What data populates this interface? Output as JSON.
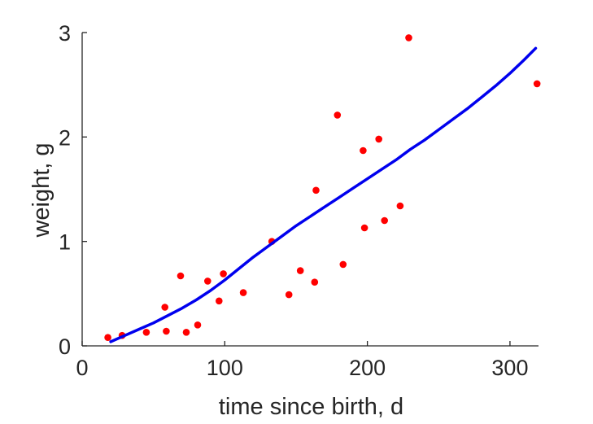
{
  "chart_data": {
    "type": "scatter",
    "xlabel": "time since birth, d",
    "ylabel": "weight, g",
    "xlim": [
      0,
      320
    ],
    "ylim": [
      0,
      3
    ],
    "x_ticks": [
      0,
      100,
      200,
      300
    ],
    "y_ticks": [
      0,
      1,
      2,
      3
    ],
    "x_tick_labels": [
      "0",
      "100",
      "200",
      "300"
    ],
    "y_tick_labels": [
      "0",
      "1",
      "2",
      "3"
    ],
    "grid": false,
    "axis_color": "#262626",
    "series": [
      {
        "kind": "scatter",
        "color": "#ff0000",
        "points": [
          [
            18,
            0.08
          ],
          [
            28,
            0.1
          ],
          [
            45,
            0.13
          ],
          [
            58,
            0.37
          ],
          [
            59,
            0.14
          ],
          [
            69,
            0.67
          ],
          [
            73,
            0.13
          ],
          [
            81,
            0.2
          ],
          [
            88,
            0.62
          ],
          [
            96,
            0.43
          ],
          [
            99,
            0.69
          ],
          [
            113,
            0.51
          ],
          [
            133,
            1.0
          ],
          [
            145,
            0.49
          ],
          [
            153,
            0.72
          ],
          [
            163,
            0.61
          ],
          [
            164,
            1.49
          ],
          [
            179,
            2.21
          ],
          [
            183,
            0.78
          ],
          [
            197,
            1.87
          ],
          [
            198,
            1.13
          ],
          [
            208,
            1.98
          ],
          [
            212,
            1.2
          ],
          [
            223,
            1.34
          ],
          [
            229,
            2.95
          ],
          [
            319,
            2.51
          ]
        ]
      },
      {
        "kind": "line",
        "color": "#0000ee",
        "points": [
          [
            20,
            0.04
          ],
          [
            30,
            0.1
          ],
          [
            40,
            0.16
          ],
          [
            50,
            0.22
          ],
          [
            60,
            0.29
          ],
          [
            70,
            0.36
          ],
          [
            80,
            0.44
          ],
          [
            90,
            0.53
          ],
          [
            100,
            0.63
          ],
          [
            110,
            0.74
          ],
          [
            120,
            0.85
          ],
          [
            130,
            0.95
          ],
          [
            140,
            1.05
          ],
          [
            150,
            1.15
          ],
          [
            160,
            1.24
          ],
          [
            170,
            1.33
          ],
          [
            180,
            1.42
          ],
          [
            190,
            1.51
          ],
          [
            200,
            1.6
          ],
          [
            210,
            1.69
          ],
          [
            220,
            1.78
          ],
          [
            230,
            1.88
          ],
          [
            240,
            1.97
          ],
          [
            250,
            2.07
          ],
          [
            260,
            2.17
          ],
          [
            270,
            2.27
          ],
          [
            280,
            2.38
          ],
          [
            290,
            2.49
          ],
          [
            300,
            2.61
          ],
          [
            310,
            2.74
          ],
          [
            318,
            2.85
          ]
        ]
      }
    ]
  }
}
